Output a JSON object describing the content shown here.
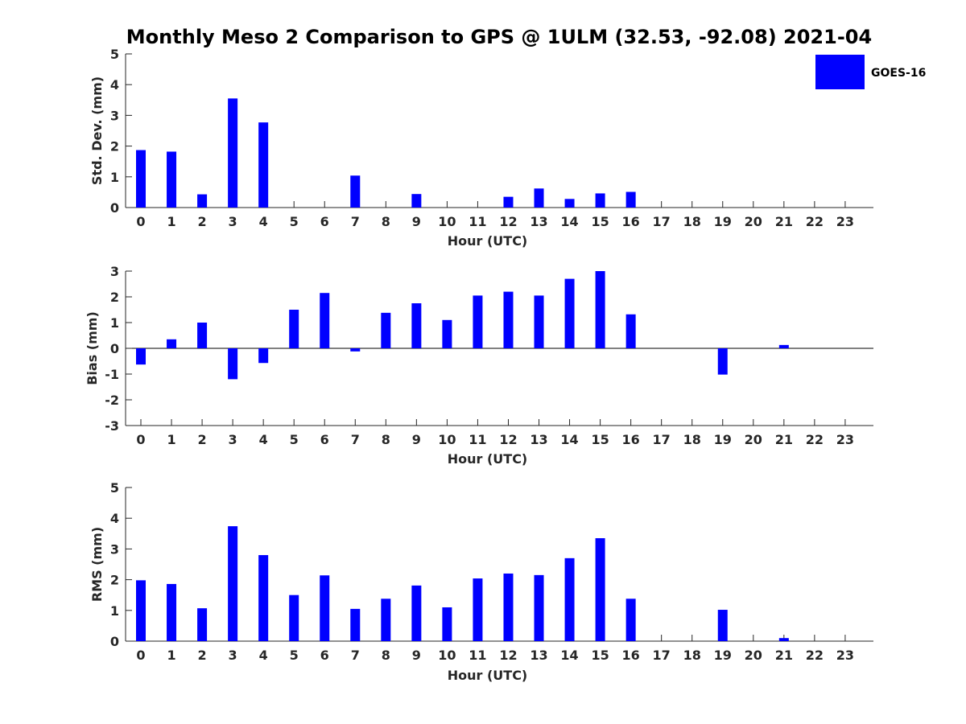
{
  "figure_title": "Monthly Meso 2 Comparison to GPS @ 1ULM (32.53, -92.08) 2021-04",
  "legend": {
    "label": "GOES-16",
    "color": "#0000ff"
  },
  "chart_data": [
    {
      "type": "bar",
      "title": "",
      "xlabel": "Hour (UTC)",
      "ylabel": "Std. Dev. (mm)",
      "ylim": [
        0,
        5
      ],
      "yticks": [
        "0",
        "1",
        "2",
        "3",
        "4",
        "5"
      ],
      "categories": [
        "0",
        "1",
        "2",
        "3",
        "4",
        "5",
        "6",
        "7",
        "8",
        "9",
        "10",
        "11",
        "12",
        "13",
        "14",
        "15",
        "16",
        "17",
        "18",
        "19",
        "20",
        "21",
        "22",
        "23"
      ],
      "series": [
        {
          "name": "GOES-16",
          "color": "#0000ff",
          "values": [
            1.87,
            1.82,
            0.43,
            3.55,
            2.77,
            null,
            null,
            1.04,
            null,
            0.44,
            null,
            null,
            0.35,
            0.62,
            0.28,
            0.46,
            0.51,
            null,
            null,
            null,
            null,
            null,
            null,
            null
          ]
        }
      ]
    },
    {
      "type": "bar",
      "title": "",
      "xlabel": "Hour (UTC)",
      "ylabel": "Bias (mm)",
      "ylim": [
        -3,
        3
      ],
      "yticks": [
        "-3",
        "-2",
        "-1",
        "0",
        "1",
        "2",
        "3"
      ],
      "categories": [
        "0",
        "1",
        "2",
        "3",
        "4",
        "5",
        "6",
        "7",
        "8",
        "9",
        "10",
        "11",
        "12",
        "13",
        "14",
        "15",
        "16",
        "17",
        "18",
        "19",
        "20",
        "21",
        "22",
        "23"
      ],
      "series": [
        {
          "name": "GOES-16",
          "color": "#0000ff",
          "values": [
            -0.63,
            0.35,
            1.0,
            -1.2,
            -0.57,
            1.5,
            2.15,
            -0.12,
            1.38,
            1.75,
            1.1,
            2.05,
            2.2,
            2.05,
            2.7,
            3.0,
            1.32,
            null,
            null,
            -1.02,
            null,
            0.13,
            null,
            null
          ]
        }
      ]
    },
    {
      "type": "bar",
      "title": "",
      "xlabel": "Hour (UTC)",
      "ylabel": "RMS (mm)",
      "ylim": [
        0,
        5
      ],
      "yticks": [
        "0",
        "1",
        "2",
        "3",
        "4",
        "5"
      ],
      "categories": [
        "0",
        "1",
        "2",
        "3",
        "4",
        "5",
        "6",
        "7",
        "8",
        "9",
        "10",
        "11",
        "12",
        "13",
        "14",
        "15",
        "16",
        "17",
        "18",
        "19",
        "20",
        "21",
        "22",
        "23"
      ],
      "series": [
        {
          "name": "GOES-16",
          "color": "#0000ff",
          "values": [
            1.98,
            1.86,
            1.07,
            3.74,
            2.8,
            1.5,
            2.14,
            1.05,
            1.38,
            1.81,
            1.1,
            2.04,
            2.2,
            2.15,
            2.7,
            3.35,
            1.38,
            null,
            null,
            1.02,
            null,
            0.1,
            null,
            null
          ]
        }
      ]
    }
  ]
}
